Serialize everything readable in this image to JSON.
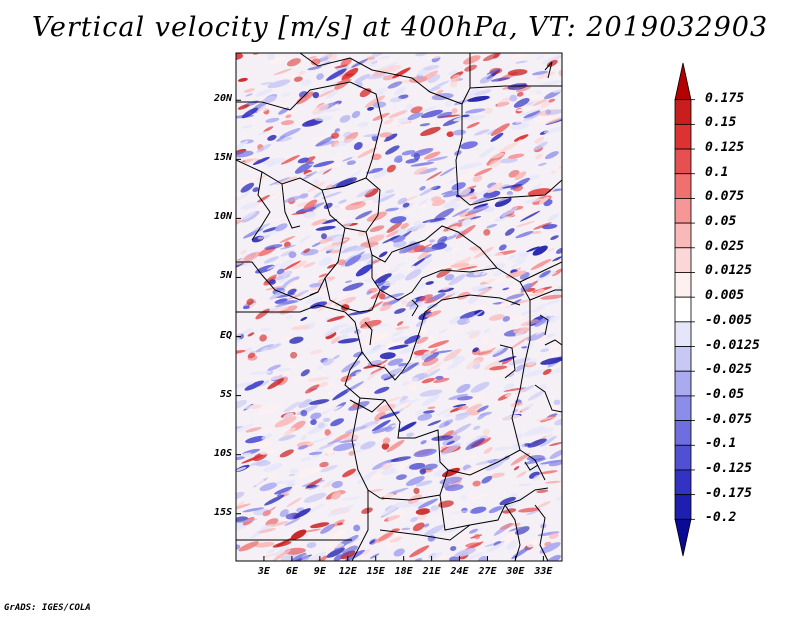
{
  "title": "Vertical velocity [m/s] at 400hPa, VT: 2019032903",
  "credit": "GrADS: IGES/COLA",
  "map": {
    "lat_range": [
      -19,
      24
    ],
    "lon_range": [
      0,
      35
    ],
    "lat_ticks": [
      "20N",
      "15N",
      "10N",
      "5N",
      "EQ",
      "5S",
      "10S",
      "15S"
    ],
    "lat_tick_values": [
      20,
      15,
      10,
      5,
      0,
      -5,
      -10,
      -15
    ],
    "lon_ticks": [
      "3E",
      "6E",
      "9E",
      "12E",
      "15E",
      "18E",
      "21E",
      "24E",
      "27E",
      "30E",
      "33E"
    ],
    "lon_tick_values": [
      3,
      6,
      9,
      12,
      15,
      18,
      21,
      24,
      27,
      30,
      33
    ],
    "field_colors": {
      "up": "#d23c3c",
      "down": "#4a4ae0",
      "neutral": "#f4f0f6"
    }
  },
  "colorbar": {
    "labels": [
      "0.175",
      "0.15",
      "0.125",
      "0.1",
      "0.075",
      "0.05",
      "0.025",
      "0.0125",
      "0.005",
      "-0.005",
      "-0.0125",
      "-0.025",
      "-0.05",
      "-0.075",
      "-0.1",
      "-0.125",
      "-0.175",
      "-0.2"
    ],
    "colors": [
      "#b40000",
      "#c81e1e",
      "#dc3232",
      "#e65050",
      "#f07070",
      "#f69696",
      "#fab9b9",
      "#fcd7d7",
      "#fff0f0",
      "#ffffff",
      "#e6e6fa",
      "#c8c8f5",
      "#aaaaf0",
      "#8c8ceb",
      "#6e6ee1",
      "#5050d2",
      "#3232c3",
      "#1e1eaf",
      "#0a0a96"
    ]
  }
}
